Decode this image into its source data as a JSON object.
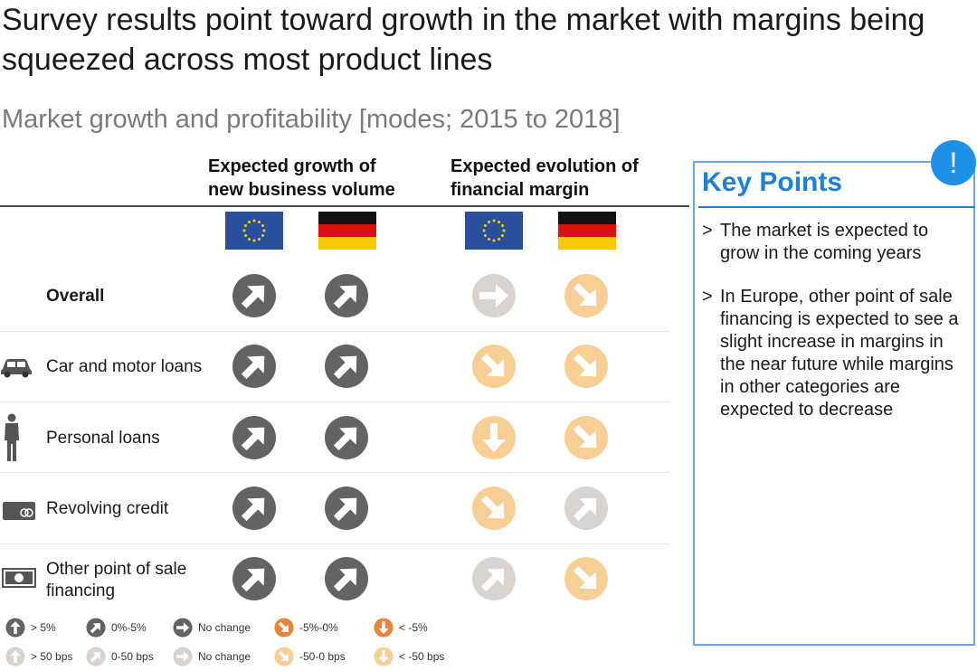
{
  "title": "Survey results point toward growth in the market with margins being squeezed across most product lines",
  "subtitle": "Market growth and profitability [modes; 2015 to 2018]",
  "columns": {
    "growth_header": [
      "Expected growth of",
      "new business volume"
    ],
    "margin_header": [
      "Expected evolution of",
      "financial margin"
    ]
  },
  "flags": [
    "eu-flag",
    "germany-flag",
    "eu-flag",
    "germany-flag"
  ],
  "colors": {
    "dark": "#636363",
    "light_gray": "#d8d3cf",
    "light_orange": "#f7cf94",
    "orange": "#e8853a",
    "accent_blue": "#1f7fd1"
  },
  "rows": [
    {
      "label": "Overall",
      "bold": true,
      "icon": "",
      "cells": [
        {
          "dir": "up-right",
          "tone": "dark"
        },
        {
          "dir": "up-right",
          "tone": "dark"
        },
        {
          "dir": "right",
          "tone": "light_gray"
        },
        {
          "dir": "down-right",
          "tone": "light_orange"
        }
      ]
    },
    {
      "label": "Car and motor loans",
      "bold": false,
      "icon": "car-icon",
      "cells": [
        {
          "dir": "up-right",
          "tone": "dark"
        },
        {
          "dir": "up-right",
          "tone": "dark"
        },
        {
          "dir": "down-right",
          "tone": "light_orange"
        },
        {
          "dir": "down-right",
          "tone": "light_orange"
        }
      ]
    },
    {
      "label": "Personal loans",
      "bold": false,
      "icon": "person-icon",
      "cells": [
        {
          "dir": "up-right",
          "tone": "dark"
        },
        {
          "dir": "up-right",
          "tone": "dark"
        },
        {
          "dir": "down",
          "tone": "light_orange"
        },
        {
          "dir": "down-right",
          "tone": "light_orange"
        }
      ]
    },
    {
      "label": "Revolving credit",
      "bold": false,
      "icon": "credit-card-icon",
      "cells": [
        {
          "dir": "up-right",
          "tone": "dark"
        },
        {
          "dir": "up-right",
          "tone": "dark"
        },
        {
          "dir": "down-right",
          "tone": "light_orange"
        },
        {
          "dir": "up-right",
          "tone": "light_gray"
        }
      ]
    },
    {
      "label": "Other point of sale financing",
      "label_lines": [
        "Other point of sale",
        "financing"
      ],
      "bold": false,
      "icon": "banknote-icon",
      "cells": [
        {
          "dir": "up-right",
          "tone": "dark"
        },
        {
          "dir": "up-right",
          "tone": "dark"
        },
        {
          "dir": "up-right",
          "tone": "light_gray"
        },
        {
          "dir": "down-right",
          "tone": "light_orange"
        }
      ]
    }
  ],
  "key_points": {
    "title": "Key Points",
    "badge": "!",
    "bullet": ">",
    "points": [
      "The market is expected to grow in the coming years",
      "In Europe, other point of sale financing is expected to see a slight increase in margins in the near future while margins in other categories are expected to decrease"
    ]
  },
  "legend": {
    "growth": [
      {
        "label": "> 5%",
        "dir": "up",
        "tone": "dark"
      },
      {
        "label": "0%-5%",
        "dir": "up-right",
        "tone": "dark"
      },
      {
        "label": "No change",
        "dir": "right",
        "tone": "dark"
      },
      {
        "label": "-5%-0%",
        "dir": "down-right",
        "tone": "orange"
      },
      {
        "label": "< -5%",
        "dir": "down",
        "tone": "orange"
      }
    ],
    "margin": [
      {
        "label": "> 50 bps",
        "dir": "up",
        "tone": "light_gray"
      },
      {
        "label": "0-50 bps",
        "dir": "up-right",
        "tone": "light_gray"
      },
      {
        "label": "No change",
        "dir": "right",
        "tone": "light_gray"
      },
      {
        "label": "-50-0 bps",
        "dir": "down-right",
        "tone": "light_orange"
      },
      {
        "label": "< -50 bps",
        "dir": "down",
        "tone": "light_orange"
      }
    ]
  }
}
